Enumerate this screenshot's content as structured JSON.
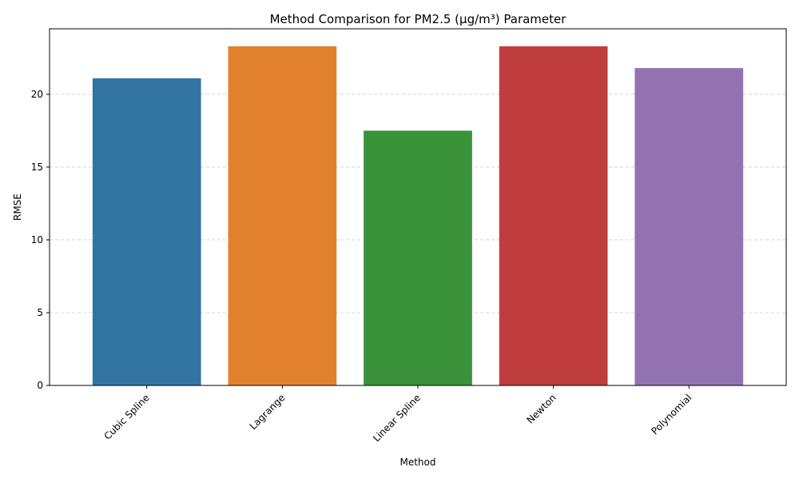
{
  "chart_data": {
    "type": "bar",
    "title": "Method Comparison for PM2.5 (µg/m³) Parameter",
    "xlabel": "Method",
    "ylabel": "RMSE",
    "categories": [
      "Cubic Spline",
      "Lagrange",
      "Linear Spline",
      "Newton",
      "Polynomial"
    ],
    "values": [
      21.1,
      23.3,
      17.5,
      23.3,
      21.8
    ],
    "colors": [
      "#3274a1",
      "#e1812c",
      "#3a923a",
      "#c03d3e",
      "#9372b2"
    ],
    "ylim": [
      0,
      24.5
    ],
    "yticks": [
      0,
      5,
      10,
      15,
      20
    ],
    "ytick_labels": [
      "0",
      "5",
      "10",
      "15",
      "20"
    ],
    "grid": "y-dashed",
    "legend": "none"
  }
}
